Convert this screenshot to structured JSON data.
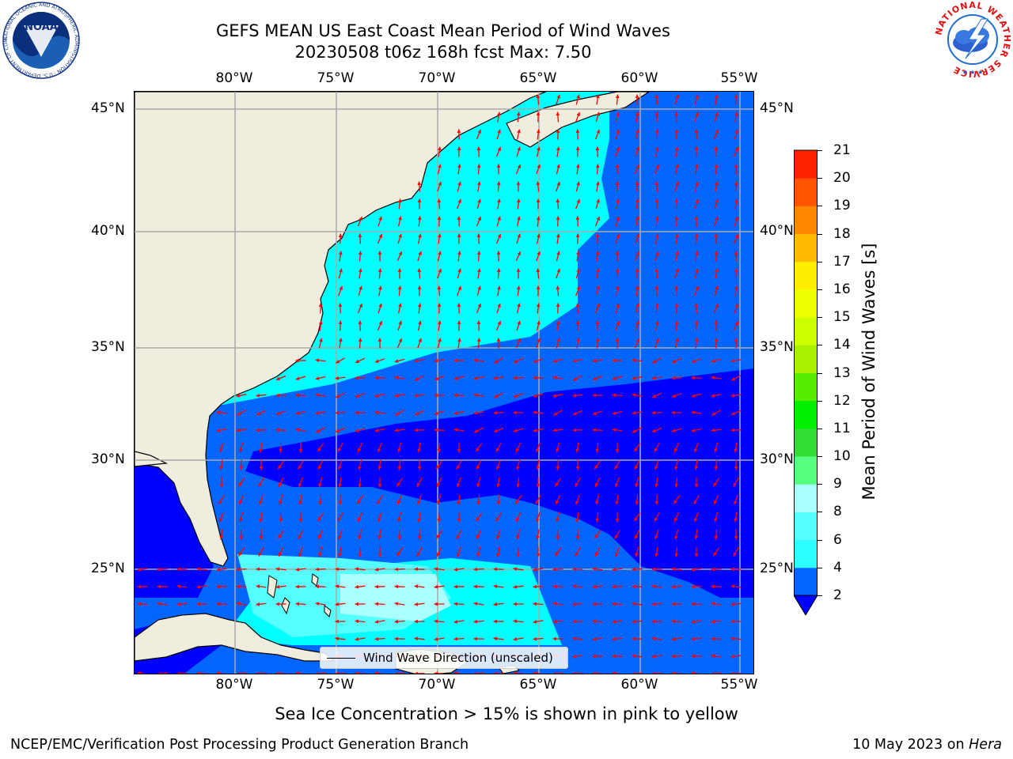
{
  "title": {
    "line1": "GEFS MEAN US East Coast Mean Period of Wind Waves",
    "line2": "20230508 t06z 168h fcst   Max: 7.50"
  },
  "map": {
    "lon_labels": [
      "80°W",
      "75°W",
      "70°W",
      "65°W",
      "60°W",
      "55°W"
    ],
    "lat_labels": [
      "45°N",
      "40°N",
      "35°N",
      "30°N",
      "25°N"
    ],
    "lon_range": [
      -85,
      -54.5
    ],
    "lat_range": [
      20.5,
      46
    ],
    "land_color": "#efedde",
    "ocean_colors": [
      "#0000ff",
      "#0066ff",
      "#00ffff",
      "#55ffff",
      "#aaffff"
    ],
    "arrow_color": "#ff0000",
    "legend_label": "Wind Wave Direction (unscaled)"
  },
  "colorbar": {
    "label": "Mean Period of Wind Waves [s]",
    "ticks": [
      "2",
      "4",
      "6",
      "8",
      "9",
      "10",
      "11",
      "12",
      "13",
      "14",
      "15",
      "16",
      "17",
      "18",
      "19",
      "20",
      "21"
    ],
    "colors": [
      "#0066ff",
      "#00ffff",
      "#2dffff",
      "#55ffff",
      "#aaffff",
      "#55ff80",
      "#33dd33",
      "#00ee00",
      "#55ee00",
      "#aaee00",
      "#ccff00",
      "#eeff00",
      "#ffee00",
      "#ffbb00",
      "#ff8800",
      "#ff5500",
      "#ff2200",
      "#ff0000"
    ],
    "under_color": "#0000ff"
  },
  "subtitle": "Sea Ice Concentration > 15% is shown in pink to yellow",
  "footer": {
    "left": "NCEP/EMC/Verification Post Processing Product Generation Branch",
    "date": "10 May 2023 on",
    "machine": "Hera"
  },
  "logos": {
    "noaa_text": "NOAA",
    "noaa_ring": "NATIONAL OCEANIC AND ATMOSPHERIC ADMINISTRATION · U.S. DEPARTMENT OF COMMERCE",
    "nws_ring": "NATIONAL WEATHER SERVICE"
  }
}
